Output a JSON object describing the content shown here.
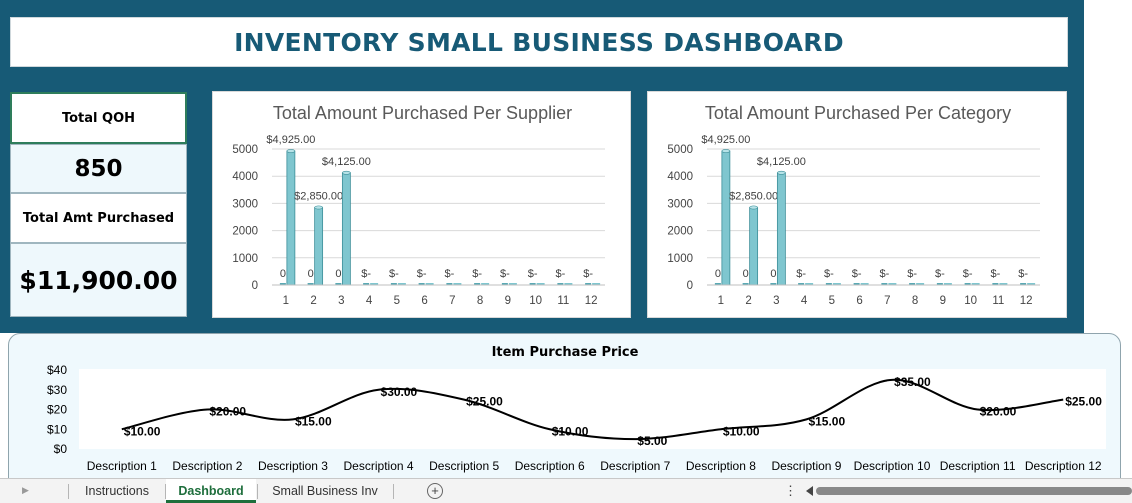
{
  "dashboard": {
    "title": "INVENTORY SMALL BUSINESS DASHBOARD"
  },
  "kpis": {
    "qoh_label": "Total QOH",
    "qoh_value": "850",
    "amt_label": "Total Amt Purchased",
    "amt_value": "$11,900.00"
  },
  "colors": {
    "header_bg": "#175a76",
    "bar_fill": "#7fc6cf",
    "line": "#000000",
    "active_tab": "#1e6e3c"
  },
  "tabs": {
    "items": [
      "Instructions",
      "Dashboard",
      "Small Business Inv"
    ],
    "active": "Dashboard"
  },
  "chart_data": [
    {
      "type": "bar",
      "title": "Total Amount Purchased Per Supplier",
      "categories": [
        "1",
        "2",
        "3",
        "4",
        "5",
        "6",
        "7",
        "8",
        "9",
        "10",
        "11",
        "12"
      ],
      "series": [
        {
          "values": [
            0,
            0,
            0,
            0,
            0,
            0,
            0,
            0,
            0,
            0,
            0,
            0
          ],
          "labels": [
            "0",
            "0",
            "0",
            "$-",
            "$-",
            "$-",
            "$-",
            "$-",
            "$-",
            "$-",
            "$-",
            "$-"
          ]
        },
        {
          "values": [
            4925,
            2850,
            4125,
            0,
            0,
            0,
            0,
            0,
            0,
            0,
            0,
            0
          ],
          "labels": [
            "$4,925.00",
            "$2,850.00",
            "$4,125.00",
            "",
            "",
            "",
            "",
            "",
            "",
            "",
            "",
            ""
          ]
        }
      ],
      "yticks": [
        "0",
        "1000",
        "2000",
        "3000",
        "4000",
        "5000"
      ],
      "ylim": [
        0,
        5000
      ],
      "grid": true
    },
    {
      "type": "bar",
      "title": "Total Amount Purchased Per Category",
      "categories": [
        "1",
        "2",
        "3",
        "4",
        "5",
        "6",
        "7",
        "8",
        "9",
        "10",
        "11",
        "12"
      ],
      "series": [
        {
          "values": [
            0,
            0,
            0,
            0,
            0,
            0,
            0,
            0,
            0,
            0,
            0,
            0
          ],
          "labels": [
            "0",
            "0",
            "0",
            "$-",
            "$-",
            "$-",
            "$-",
            "$-",
            "$-",
            "$-",
            "$-",
            "$-"
          ]
        },
        {
          "values": [
            4925,
            2850,
            4125,
            0,
            0,
            0,
            0,
            0,
            0,
            0,
            0,
            0
          ],
          "labels": [
            "$4,925.00",
            "$2,850.00",
            "$4,125.00",
            "",
            "",
            "",
            "",
            "",
            "",
            "",
            "",
            ""
          ]
        }
      ],
      "yticks": [
        "0",
        "1000",
        "2000",
        "3000",
        "4000",
        "5000"
      ],
      "ylim": [
        0,
        5000
      ],
      "grid": true
    },
    {
      "type": "line",
      "title": "Item Purchase Price",
      "categories": [
        "Description 1",
        "Description 2",
        "Description 3",
        "Description 4",
        "Description 5",
        "Description 6",
        "Description 7",
        "Description 8",
        "Description 9",
        "Description 10",
        "Description 11",
        "Description 12"
      ],
      "values": [
        10,
        20,
        15,
        30,
        25,
        10,
        5,
        10,
        15,
        35,
        20,
        25
      ],
      "labels": [
        "$10.00",
        "$20.00",
        "$15.00",
        "$30.00",
        "$25.00",
        "$10.00",
        "$5.00",
        "$10.00",
        "$15.00",
        "$35.00",
        "$20.00",
        "$25.00"
      ],
      "yticks": [
        "$0",
        "$10",
        "$20",
        "$30",
        "$40"
      ],
      "ylim": [
        0,
        40
      ],
      "smooth": true,
      "grid": false
    }
  ]
}
